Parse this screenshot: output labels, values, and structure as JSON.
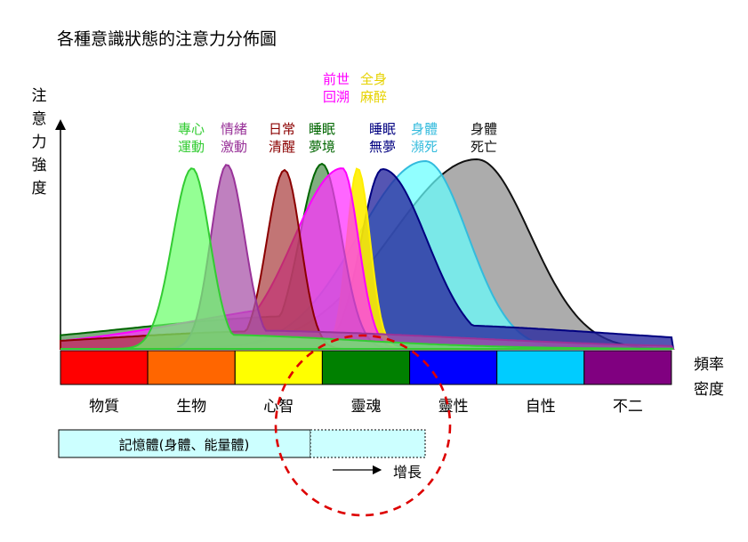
{
  "title": "各種意識狀態的注意力分佈圖",
  "y_axis_label": "注意力強度",
  "x_axis_label": [
    "頻率",
    "密度"
  ],
  "curves": [
    {
      "id": "focus",
      "label": [
        "專心",
        "運動"
      ],
      "color": "#33cc33",
      "fill": "#66ff66"
    },
    {
      "id": "emotion",
      "label": [
        "情緒",
        "激動"
      ],
      "color": "#993399",
      "fill": "#aa55aa"
    },
    {
      "id": "awake",
      "label": [
        "日常",
        "清醒"
      ],
      "color": "#8b0000",
      "fill": "#a83a3a"
    },
    {
      "id": "hypnosis",
      "label": [
        "前世",
        "回溯"
      ],
      "color": "#ff00ff",
      "fill": "#ff33ff"
    },
    {
      "id": "dreaming",
      "label": [
        "睡眠",
        "夢境"
      ],
      "color": "#006600",
      "fill": "#4a8a4a"
    },
    {
      "id": "anesthesia",
      "label": [
        "全身",
        "麻醉"
      ],
      "color": "#ffee00",
      "fill": "#ffee00"
    },
    {
      "id": "deep-sleep",
      "label": [
        "睡眠",
        "無夢"
      ],
      "color": "#000080",
      "fill": "#2a2aa0"
    },
    {
      "id": "near-death",
      "label": [
        "身體",
        "瀕死"
      ],
      "color": "#33bbdd",
      "fill": "#66ffff"
    },
    {
      "id": "death",
      "label": [
        "身體",
        "死亡"
      ],
      "color": "#111111",
      "fill": "#a0a0a0"
    }
  ],
  "bands": [
    {
      "label": "物質",
      "color": "#ff0000"
    },
    {
      "label": "生物",
      "color": "#ff6600"
    },
    {
      "label": "心智",
      "color": "#ffff00"
    },
    {
      "label": "靈魂",
      "color": "#008000"
    },
    {
      "label": "靈性",
      "color": "#0000ff"
    },
    {
      "label": "自性",
      "color": "#00ccff"
    },
    {
      "label": "不二",
      "color": "#800080"
    }
  ],
  "memory_body": {
    "label": "記憶體(身體、能量體)",
    "fill": "#ccffff"
  },
  "growth_label": "增長",
  "highlight_circle_color": "#dd0000"
}
